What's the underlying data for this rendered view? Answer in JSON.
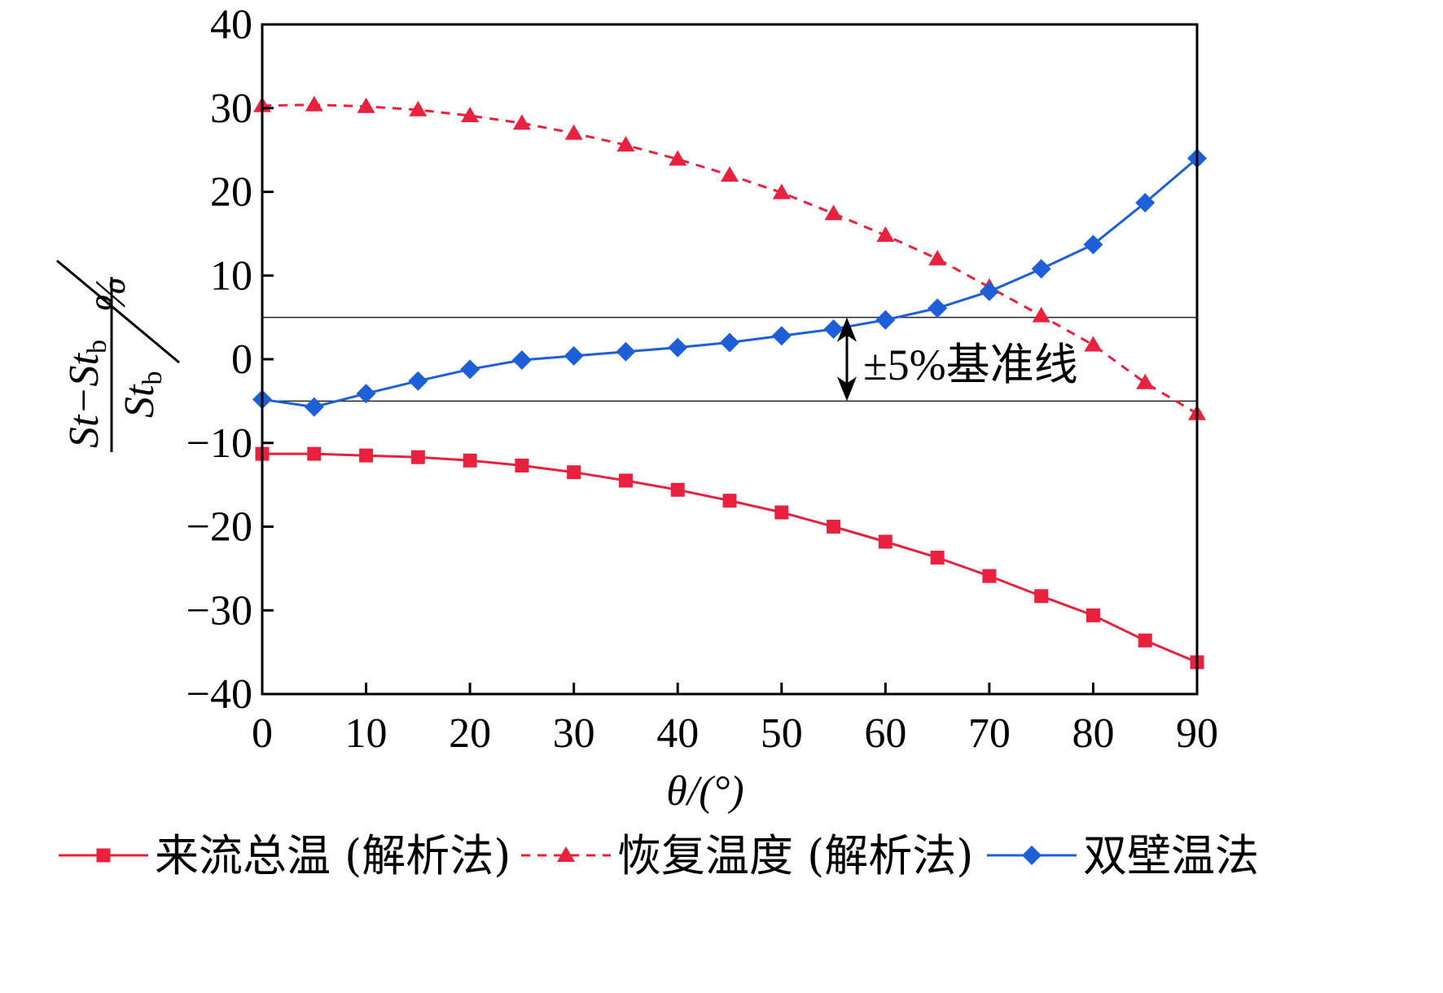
{
  "chart_data": {
    "type": "line",
    "xlabel": "θ/(°)",
    "ylabel": {
      "numerator": "St−St",
      "numerator_sub": "b",
      "denominator": "St",
      "denominator_sub": "b",
      "unit": "%"
    },
    "xlim": [
      0,
      90
    ],
    "ylim": [
      -40,
      40
    ],
    "xticks": [
      0,
      10,
      20,
      30,
      40,
      50,
      60,
      70,
      80,
      90
    ],
    "yticks": [
      40,
      30,
      20,
      10,
      0,
      -10,
      -20,
      -30,
      -40
    ],
    "xtick_labels": [
      "0",
      "10",
      "20",
      "30",
      "40",
      "50",
      "60",
      "70",
      "80",
      "90"
    ],
    "ytick_labels": [
      "40",
      "30",
      "20",
      "10",
      "0",
      "−10",
      "−20",
      "−30",
      "−40"
    ],
    "grid": false,
    "legend_position": "bottom",
    "reference_lines": [
      5,
      -5
    ],
    "annotation": "±5%基准线",
    "x": [
      0,
      5,
      10,
      15,
      20,
      25,
      30,
      35,
      40,
      45,
      50,
      55,
      60,
      65,
      70,
      75,
      80,
      85,
      90
    ],
    "series": [
      {
        "name": "来流总温 (解析法)",
        "color": "#e8213f",
        "line": "solid",
        "marker": "square",
        "values": [
          -11.3,
          -11.3,
          -11.5,
          -11.7,
          -12.1,
          -12.7,
          -13.5,
          -14.5,
          -15.6,
          -16.9,
          -18.3,
          -20.0,
          -21.8,
          -23.7,
          -25.9,
          -28.3,
          -30.6,
          -33.6,
          -36.2
        ]
      },
      {
        "name": "恢复温度 (解析法)",
        "color": "#e8213f",
        "line": "dashed",
        "marker": "triangle",
        "values": [
          30.3,
          30.4,
          30.2,
          29.8,
          29.1,
          28.2,
          27.0,
          25.6,
          23.9,
          22.0,
          19.9,
          17.4,
          14.8,
          12.0,
          8.6,
          5.2,
          1.7,
          -2.8,
          -6.5
        ]
      },
      {
        "name": "双壁温法",
        "color": "#1c5fd8",
        "line": "solid",
        "marker": "diamond",
        "values": [
          -4.8,
          -5.7,
          -4.1,
          -2.6,
          -1.2,
          -0.1,
          0.4,
          0.9,
          1.4,
          2.0,
          2.8,
          3.6,
          4.7,
          6.1,
          8.1,
          10.8,
          13.7,
          18.7,
          24.0
        ]
      }
    ]
  }
}
